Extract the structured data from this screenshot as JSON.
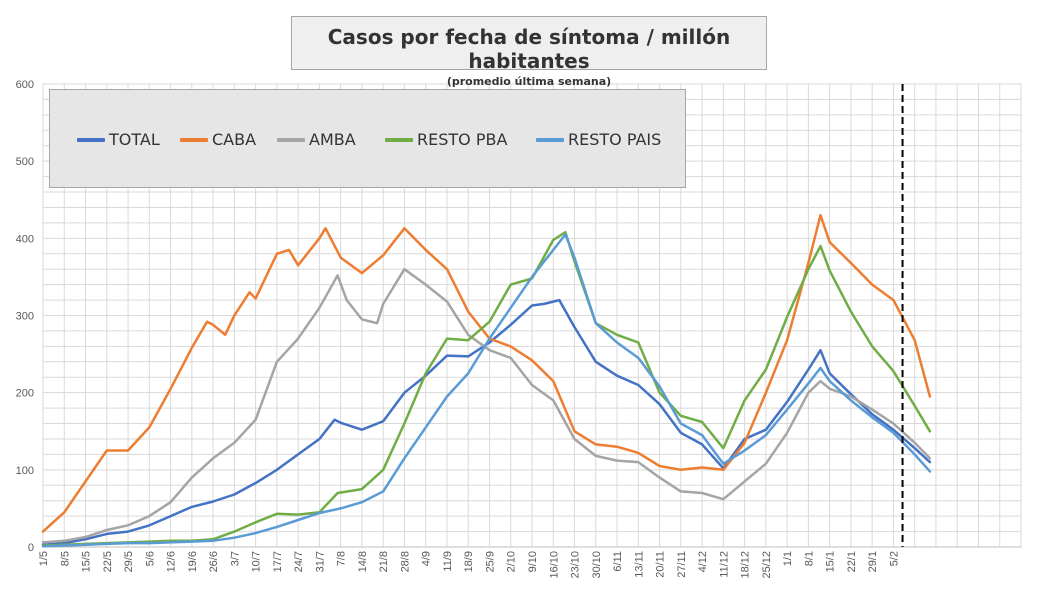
{
  "title": "Casos por fecha de síntoma / millón habitantes",
  "subtitle": "(promedio última semana)",
  "chart_data": {
    "type": "line",
    "ylim": [
      0,
      600
    ],
    "yticks": [
      0,
      100,
      200,
      300,
      400,
      500,
      600
    ],
    "x_range": [
      0,
      322
    ],
    "x_tick_labels": [
      "1/5",
      "8/5",
      "15/5",
      "22/5",
      "29/5",
      "5/6",
      "12/6",
      "19/6",
      "26/6",
      "3/7",
      "10/7",
      "17/7",
      "24/7",
      "31/7",
      "7/8",
      "14/8",
      "21/8",
      "28/8",
      "4/9",
      "11/9",
      "18/9",
      "25/9",
      "2/10",
      "9/10",
      "16/10",
      "23/10",
      "30/10",
      "6/11",
      "13/11",
      "20/11",
      "27/11",
      "4/12",
      "11/12",
      "18/12",
      "25/12",
      "1/1",
      "8/1",
      "15/1",
      "22/1",
      "29/1",
      "5/2"
    ],
    "x_tick_days": [
      0,
      7,
      14,
      21,
      28,
      35,
      42,
      49,
      56,
      63,
      70,
      77,
      84,
      91,
      98,
      105,
      112,
      119,
      126,
      133,
      140,
      147,
      154,
      161,
      168,
      175,
      182,
      189,
      196,
      203,
      210,
      217,
      224,
      231,
      238,
      245,
      252,
      259,
      266,
      273,
      280
    ],
    "grid": true,
    "vline_day": 283,
    "legend_position": "top-left",
    "series": [
      {
        "name": "TOTAL",
        "color": "#4472c4",
        "points": [
          [
            0,
            3
          ],
          [
            7,
            5
          ],
          [
            14,
            10
          ],
          [
            21,
            17
          ],
          [
            28,
            20
          ],
          [
            35,
            28
          ],
          [
            42,
            40
          ],
          [
            49,
            52
          ],
          [
            56,
            59
          ],
          [
            63,
            68
          ],
          [
            70,
            83
          ],
          [
            77,
            100
          ],
          [
            84,
            120
          ],
          [
            91,
            140
          ],
          [
            96,
            165
          ],
          [
            98,
            161
          ],
          [
            105,
            152
          ],
          [
            112,
            163
          ],
          [
            119,
            200
          ],
          [
            126,
            222
          ],
          [
            133,
            248
          ],
          [
            140,
            247
          ],
          [
            147,
            265
          ],
          [
            154,
            288
          ],
          [
            161,
            313
          ],
          [
            165,
            315
          ],
          [
            168,
            318
          ],
          [
            170,
            320
          ],
          [
            175,
            285
          ],
          [
            182,
            240
          ],
          [
            189,
            222
          ],
          [
            196,
            210
          ],
          [
            203,
            185
          ],
          [
            210,
            148
          ],
          [
            217,
            133
          ],
          [
            224,
            102
          ],
          [
            231,
            140
          ],
          [
            238,
            152
          ],
          [
            245,
            188
          ],
          [
            252,
            230
          ],
          [
            256,
            255
          ],
          [
            259,
            225
          ],
          [
            266,
            198
          ],
          [
            273,
            172
          ],
          [
            280,
            152
          ],
          [
            287,
            128
          ],
          [
            292,
            110
          ]
        ]
      },
      {
        "name": "CABA",
        "color": "#ed7d31",
        "points": [
          [
            0,
            20
          ],
          [
            7,
            45
          ],
          [
            14,
            85
          ],
          [
            21,
            125
          ],
          [
            28,
            125
          ],
          [
            35,
            155
          ],
          [
            42,
            205
          ],
          [
            49,
            258
          ],
          [
            54,
            292
          ],
          [
            56,
            288
          ],
          [
            60,
            275
          ],
          [
            63,
            300
          ],
          [
            68,
            330
          ],
          [
            70,
            322
          ],
          [
            77,
            380
          ],
          [
            81,
            385
          ],
          [
            84,
            365
          ],
          [
            91,
            400
          ],
          [
            93,
            413
          ],
          [
            98,
            375
          ],
          [
            105,
            355
          ],
          [
            112,
            378
          ],
          [
            119,
            413
          ],
          [
            126,
            385
          ],
          [
            133,
            360
          ],
          [
            140,
            305
          ],
          [
            147,
            270
          ],
          [
            154,
            260
          ],
          [
            161,
            242
          ],
          [
            168,
            215
          ],
          [
            175,
            150
          ],
          [
            182,
            133
          ],
          [
            189,
            130
          ],
          [
            196,
            122
          ],
          [
            203,
            105
          ],
          [
            210,
            100
          ],
          [
            217,
            103
          ],
          [
            224,
            100
          ],
          [
            231,
            135
          ],
          [
            238,
            200
          ],
          [
            245,
            268
          ],
          [
            252,
            368
          ],
          [
            256,
            430
          ],
          [
            259,
            395
          ],
          [
            266,
            368
          ],
          [
            273,
            340
          ],
          [
            280,
            320
          ],
          [
            287,
            268
          ],
          [
            292,
            195
          ]
        ]
      },
      {
        "name": "AMBA",
        "color": "#a5a5a5",
        "points": [
          [
            0,
            6
          ],
          [
            7,
            8
          ],
          [
            14,
            13
          ],
          [
            21,
            22
          ],
          [
            28,
            28
          ],
          [
            35,
            40
          ],
          [
            42,
            58
          ],
          [
            49,
            90
          ],
          [
            56,
            115
          ],
          [
            63,
            135
          ],
          [
            70,
            165
          ],
          [
            77,
            240
          ],
          [
            84,
            270
          ],
          [
            91,
            310
          ],
          [
            97,
            352
          ],
          [
            100,
            320
          ],
          [
            105,
            295
          ],
          [
            110,
            290
          ],
          [
            112,
            315
          ],
          [
            119,
            360
          ],
          [
            126,
            340
          ],
          [
            133,
            318
          ],
          [
            140,
            275
          ],
          [
            147,
            255
          ],
          [
            154,
            245
          ],
          [
            161,
            210
          ],
          [
            168,
            190
          ],
          [
            175,
            140
          ],
          [
            182,
            118
          ],
          [
            189,
            112
          ],
          [
            196,
            110
          ],
          [
            203,
            90
          ],
          [
            210,
            72
          ],
          [
            217,
            70
          ],
          [
            224,
            62
          ],
          [
            231,
            85
          ],
          [
            238,
            108
          ],
          [
            245,
            148
          ],
          [
            252,
            200
          ],
          [
            256,
            215
          ],
          [
            259,
            205
          ],
          [
            266,
            195
          ],
          [
            273,
            178
          ],
          [
            280,
            160
          ],
          [
            287,
            135
          ],
          [
            292,
            115
          ]
        ]
      },
      {
        "name": "RESTO PBA",
        "color": "#70ad47",
        "points": [
          [
            0,
            2
          ],
          [
            7,
            3
          ],
          [
            14,
            4
          ],
          [
            21,
            5
          ],
          [
            28,
            6
          ],
          [
            35,
            7
          ],
          [
            42,
            8
          ],
          [
            49,
            8
          ],
          [
            56,
            10
          ],
          [
            63,
            20
          ],
          [
            70,
            32
          ],
          [
            77,
            43
          ],
          [
            84,
            42
          ],
          [
            91,
            45
          ],
          [
            97,
            70
          ],
          [
            105,
            75
          ],
          [
            112,
            100
          ],
          [
            119,
            160
          ],
          [
            126,
            225
          ],
          [
            133,
            270
          ],
          [
            140,
            268
          ],
          [
            147,
            292
          ],
          [
            154,
            340
          ],
          [
            161,
            348
          ],
          [
            168,
            398
          ],
          [
            172,
            408
          ],
          [
            175,
            370
          ],
          [
            182,
            290
          ],
          [
            189,
            275
          ],
          [
            196,
            265
          ],
          [
            203,
            200
          ],
          [
            210,
            170
          ],
          [
            217,
            162
          ],
          [
            224,
            128
          ],
          [
            231,
            190
          ],
          [
            238,
            230
          ],
          [
            245,
            298
          ],
          [
            252,
            360
          ],
          [
            256,
            390
          ],
          [
            259,
            358
          ],
          [
            266,
            305
          ],
          [
            273,
            260
          ],
          [
            280,
            228
          ],
          [
            287,
            183
          ],
          [
            292,
            150
          ]
        ]
      },
      {
        "name": "RESTO PAIS",
        "color": "#5b9bd5",
        "points": [
          [
            0,
            1
          ],
          [
            7,
            2
          ],
          [
            14,
            3
          ],
          [
            21,
            4
          ],
          [
            28,
            5
          ],
          [
            35,
            5
          ],
          [
            42,
            6
          ],
          [
            49,
            7
          ],
          [
            56,
            8
          ],
          [
            63,
            12
          ],
          [
            70,
            18
          ],
          [
            77,
            26
          ],
          [
            84,
            35
          ],
          [
            91,
            44
          ],
          [
            98,
            50
          ],
          [
            105,
            58
          ],
          [
            112,
            72
          ],
          [
            119,
            115
          ],
          [
            126,
            155
          ],
          [
            133,
            195
          ],
          [
            140,
            225
          ],
          [
            147,
            270
          ],
          [
            154,
            310
          ],
          [
            161,
            350
          ],
          [
            168,
            385
          ],
          [
            172,
            405
          ],
          [
            175,
            375
          ],
          [
            182,
            290
          ],
          [
            189,
            265
          ],
          [
            196,
            245
          ],
          [
            203,
            208
          ],
          [
            210,
            160
          ],
          [
            217,
            145
          ],
          [
            224,
            108
          ],
          [
            231,
            125
          ],
          [
            238,
            145
          ],
          [
            245,
            178
          ],
          [
            252,
            212
          ],
          [
            256,
            232
          ],
          [
            259,
            215
          ],
          [
            266,
            190
          ],
          [
            273,
            168
          ],
          [
            280,
            148
          ],
          [
            287,
            120
          ],
          [
            292,
            98
          ]
        ]
      }
    ]
  }
}
